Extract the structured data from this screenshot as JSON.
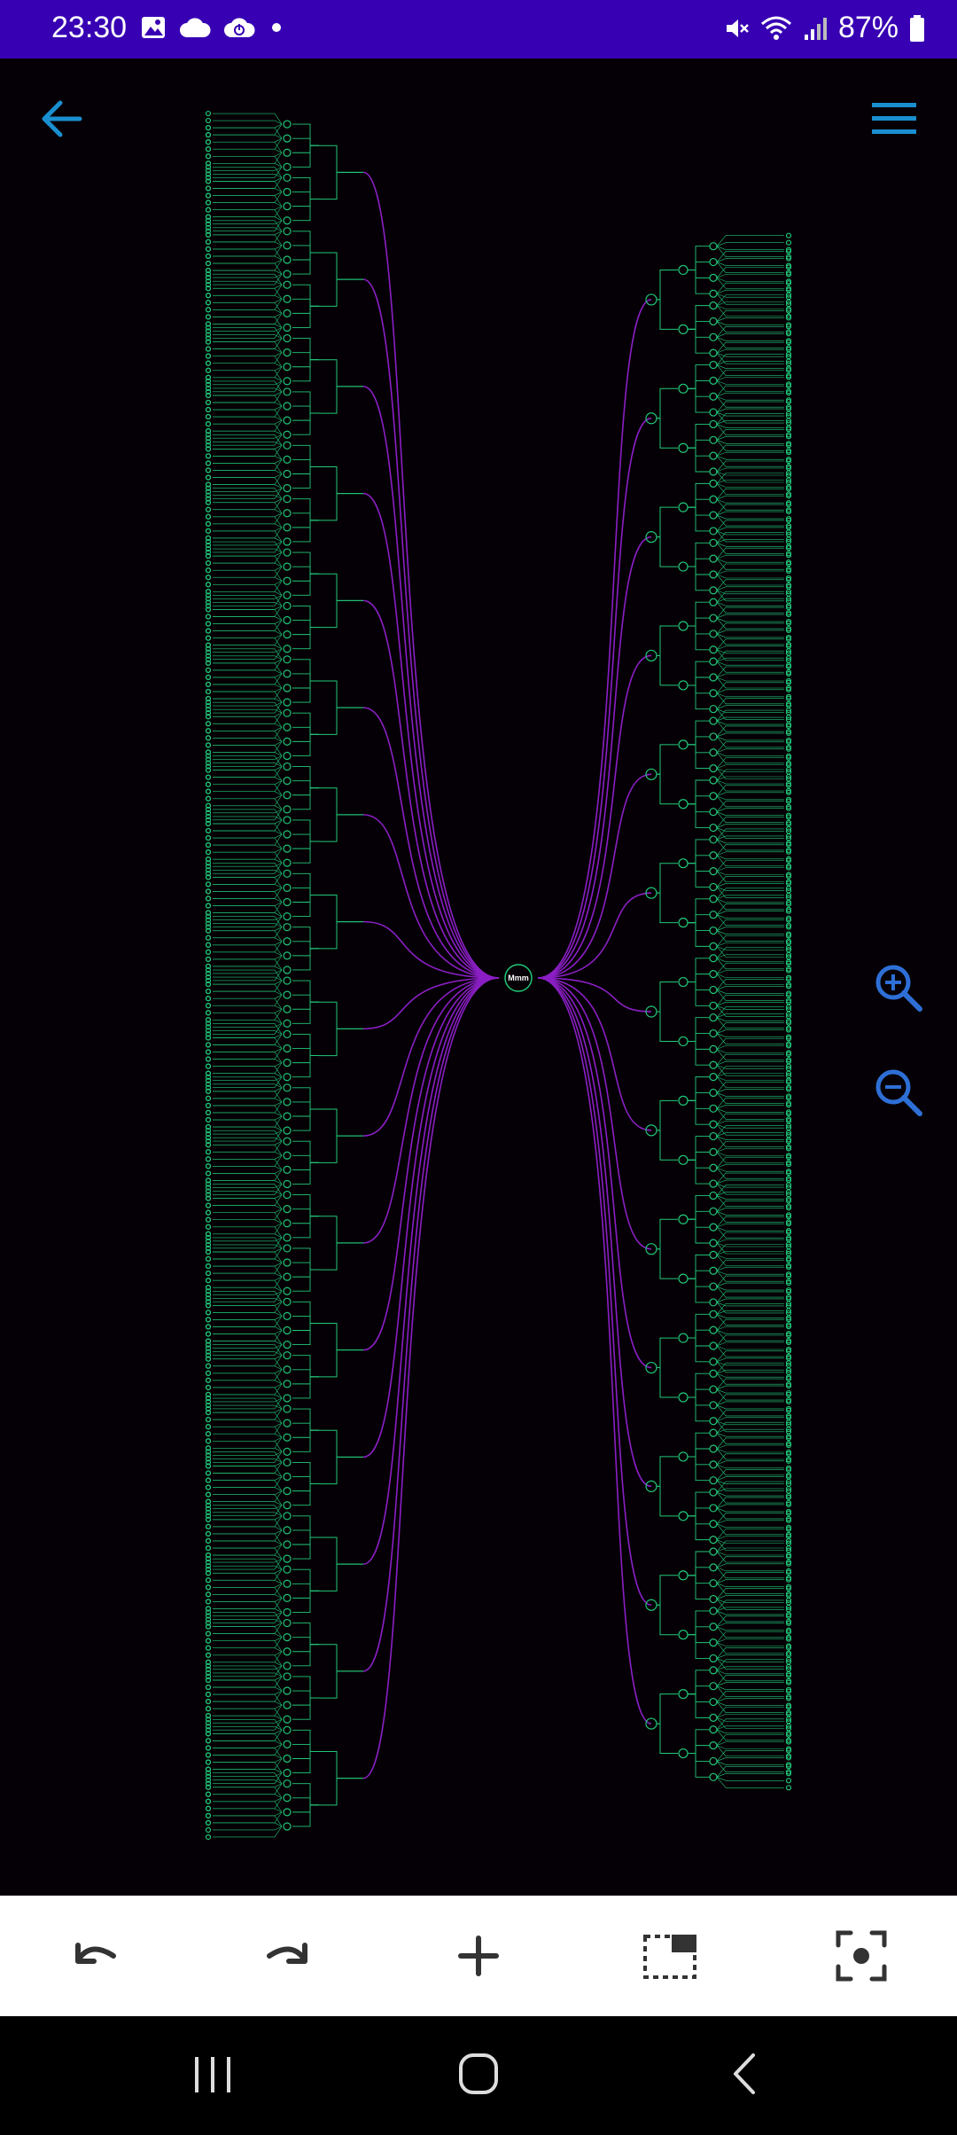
{
  "status_bar": {
    "time": "23:30",
    "battery": "87%",
    "left_icons": [
      "gallery-icon",
      "cloud-icon",
      "cloud-sync-icon",
      "dot-icon"
    ],
    "right_icons": [
      "mute-icon",
      "wifi-icon",
      "signal-icon",
      "battery-icon"
    ]
  },
  "header": {
    "back_icon": "arrow-left-icon",
    "menu_icon": "hamburger-menu-icon"
  },
  "mindmap": {
    "root_label": "Mmm",
    "colors": {
      "branch": "#8a1fc4",
      "node": "#21c77a",
      "background": "#050005"
    }
  },
  "zoom": {
    "in_icon": "zoom-in-icon",
    "out_icon": "zoom-out-icon"
  },
  "toolbar": {
    "items": [
      "undo-icon",
      "redo-icon",
      "add-icon",
      "view-frame-icon",
      "focus-icon"
    ]
  },
  "nav_bar": {
    "items": [
      "recents-icon",
      "home-icon",
      "back-icon"
    ]
  },
  "colors": {
    "accent": "#1a8fd0",
    "status_bar": "#3700b3",
    "toolbar_bg": "#ffffff"
  }
}
